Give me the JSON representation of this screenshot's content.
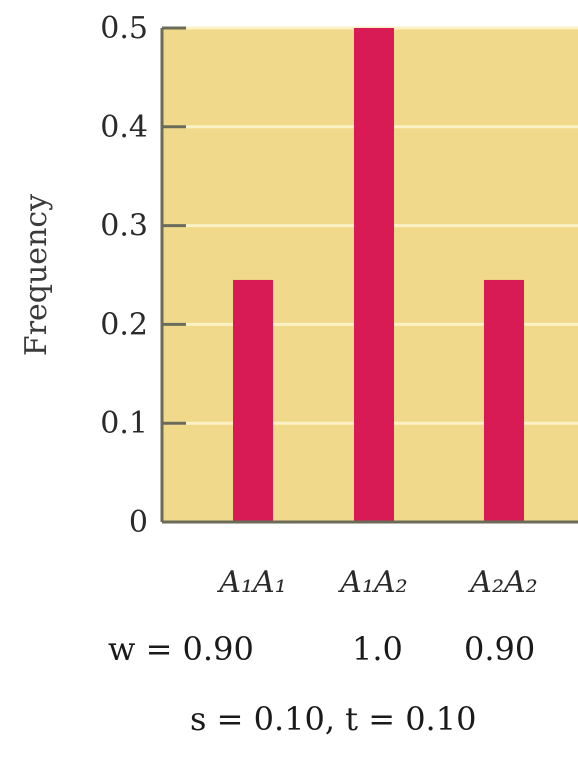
{
  "chart_data": {
    "type": "bar",
    "ylabel": "Frequency",
    "ylim": [
      0,
      0.5
    ],
    "yticks": [
      "0",
      "0.1",
      "0.2",
      "0.3",
      "0.4",
      "0.5"
    ],
    "categories": [
      "A₁A₁",
      "A₁A₂",
      "A₂A₂"
    ],
    "values": [
      0.245,
      0.5,
      0.245
    ],
    "grid": true,
    "colors": {
      "background": "#f0d98a",
      "bar": "#d81b54",
      "grid": "#fbf1c4",
      "axis": "#6b6b5a"
    }
  },
  "annotations": {
    "fitness_prefix": "w = 0.90",
    "fitness_values": [
      "1.0",
      "0.90"
    ],
    "params": "s = 0.10, t = 0.10"
  }
}
